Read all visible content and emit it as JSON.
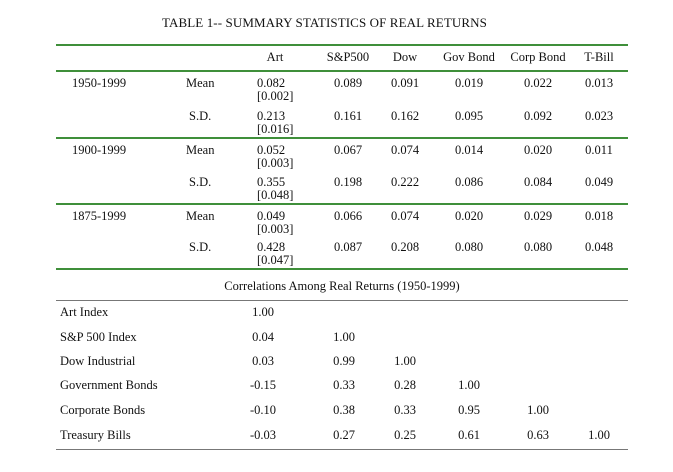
{
  "title": "TABLE 1-- SUMMARY STATISTICS OF REAL RETURNS",
  "columns": [
    "Art",
    "S&P500",
    "Dow",
    "Gov Bond",
    "Corp Bond",
    "T-Bill"
  ],
  "periods": [
    {
      "label": "1950-1999",
      "rows": [
        {
          "stat": "Mean",
          "art": "0.082",
          "art_se": "[0.002]",
          "values": [
            "0.089",
            "0.091",
            "0.019",
            "0.022",
            "0.013"
          ]
        },
        {
          "stat": "S.D.",
          "art": "0.213",
          "art_se": "[0.016]",
          "values": [
            "0.161",
            "0.162",
            "0.095",
            "0.092",
            "0.023"
          ]
        }
      ]
    },
    {
      "label": "1900-1999",
      "rows": [
        {
          "stat": "Mean",
          "art": "0.052",
          "art_se": "[0.003]",
          "values": [
            "0.067",
            "0.074",
            "0.014",
            "0.020",
            "0.011"
          ]
        },
        {
          "stat": "S.D.",
          "art": "0.355",
          "art_se": "[0.048]",
          "values": [
            "0.198",
            "0.222",
            "0.086",
            "0.084",
            "0.049"
          ]
        }
      ]
    },
    {
      "label": "1875-1999",
      "rows": [
        {
          "stat": "Mean",
          "art": "0.049",
          "art_se": "[0.003]",
          "values": [
            "0.066",
            "0.074",
            "0.020",
            "0.029",
            "0.018"
          ]
        },
        {
          "stat": "S.D.",
          "art": "0.428",
          "art_se": "[0.047]",
          "values": [
            "0.087",
            "0.208",
            "0.080",
            "0.080",
            "0.048"
          ]
        }
      ]
    }
  ],
  "correlations": {
    "title": "Correlations Among Real Returns (1950-1999)",
    "rows": [
      {
        "label": "Art Index",
        "values": [
          "1.00"
        ]
      },
      {
        "label": "S&P 500 Index",
        "values": [
          "0.04",
          "1.00"
        ]
      },
      {
        "label": "Dow Industrial",
        "values": [
          "0.03",
          "0.99",
          "1.00"
        ]
      },
      {
        "label": "Government Bonds",
        "values": [
          "-0.15",
          "0.33",
          "0.28",
          "1.00"
        ]
      },
      {
        "label": "Corporate Bonds",
        "values": [
          "-0.10",
          "0.38",
          "0.33",
          "0.95",
          "1.00"
        ]
      },
      {
        "label": "Treasury Bills",
        "values": [
          "-0.03",
          "0.27",
          "0.25",
          "0.61",
          "0.63",
          "1.00"
        ]
      }
    ]
  }
}
